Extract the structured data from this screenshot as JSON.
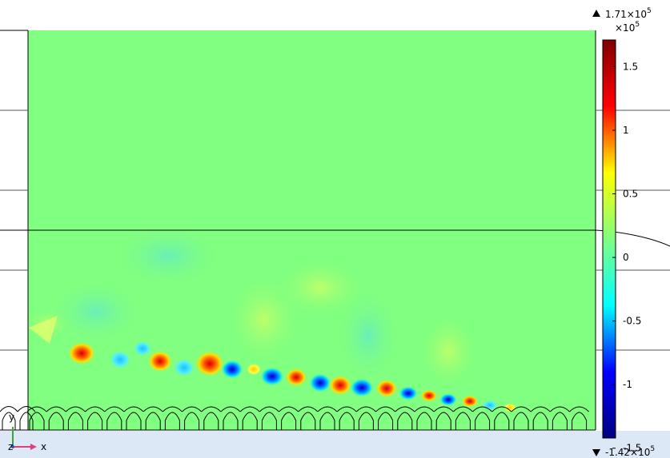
{
  "plot": {
    "colorbar": {
      "max_label": "1.71×10",
      "max_exp": "5",
      "multiplier": "×10",
      "multiplier_exp": "5",
      "min_label": "-1.42×10",
      "min_exp": "5",
      "ticks": [
        "1.5",
        "1",
        "0.5",
        "0",
        "-0.5",
        "-1",
        "-1.5"
      ],
      "tick_values": [
        1.5,
        1,
        0.5,
        0,
        -0.5,
        -1,
        -1.5
      ],
      "range": [
        -1.42,
        1.71
      ],
      "colors": [
        "#00007f",
        "#0000ff",
        "#00ffff",
        "#80ff80",
        "#ffff00",
        "#ff0000",
        "#7f0000"
      ]
    },
    "axes": {
      "z_label": "z",
      "x_label": "x",
      "y_label": "y"
    },
    "background_color": "#80ff80"
  }
}
